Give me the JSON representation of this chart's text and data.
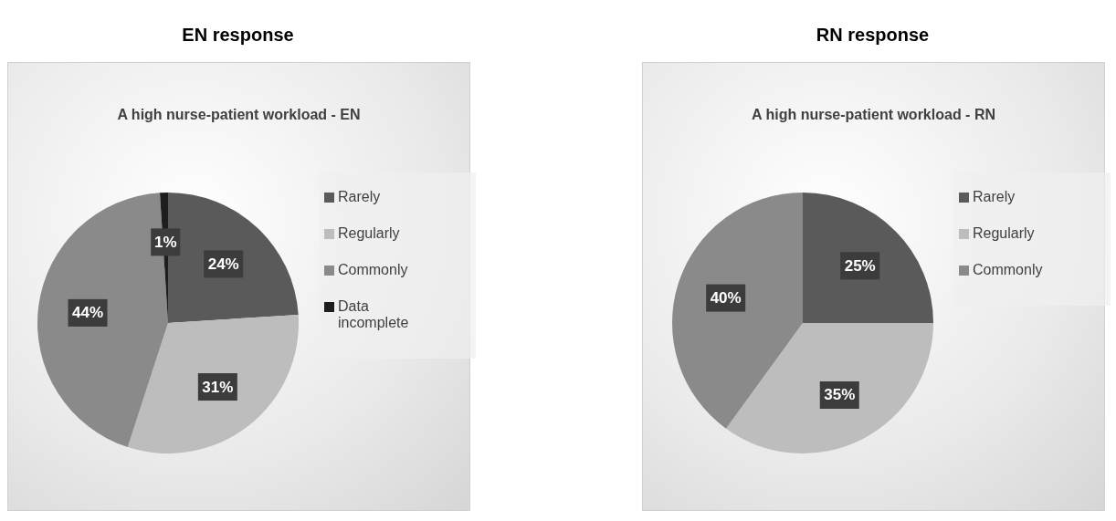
{
  "chart_data": [
    {
      "type": "pie",
      "title": "EN response",
      "subtitle": "A high nurse-patient workload - EN",
      "categories": [
        "Rarely",
        "Regularly",
        "Commonly",
        "Data incomplete"
      ],
      "values": [
        24,
        31,
        44,
        1
      ],
      "colors": [
        "#5a5a5a",
        "#bdbdbd",
        "#8a8a8a",
        "#1e1e1e"
      ],
      "value_labels": [
        "24%",
        "31%",
        "44%",
        "1%"
      ],
      "legend": "right"
    },
    {
      "type": "pie",
      "title": "RN response",
      "subtitle": "A high nurse-patient workload - RN",
      "categories": [
        "Rarely",
        "Regularly",
        "Commonly"
      ],
      "values": [
        25,
        35,
        40
      ],
      "colors": [
        "#5a5a5a",
        "#bdbdbd",
        "#8a8a8a"
      ],
      "value_labels": [
        "25%",
        "35%",
        "40%"
      ],
      "legend": "right"
    }
  ]
}
